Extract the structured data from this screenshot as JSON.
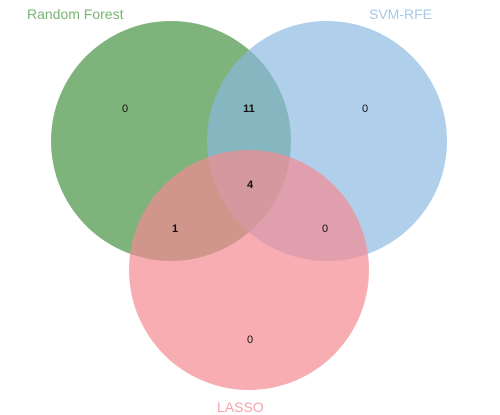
{
  "sets": [
    {
      "id": "rf",
      "label": "Random Forest",
      "color": "#5a9e57",
      "label_color": "#7ab477"
    },
    {
      "id": "svm",
      "label": "SVM-RFE",
      "color": "#8ab8e0",
      "label_color": "#a7c8e6"
    },
    {
      "id": "lasso",
      "label": "LASSO",
      "color": "#f58a92",
      "label_color": "#f4a3a9"
    }
  ],
  "regions": {
    "rf_only": "0",
    "svm_only": "0",
    "lasso_only": "0",
    "rf_svm": "11",
    "rf_lasso": "1",
    "svm_lasso": "0",
    "all": "4"
  }
}
